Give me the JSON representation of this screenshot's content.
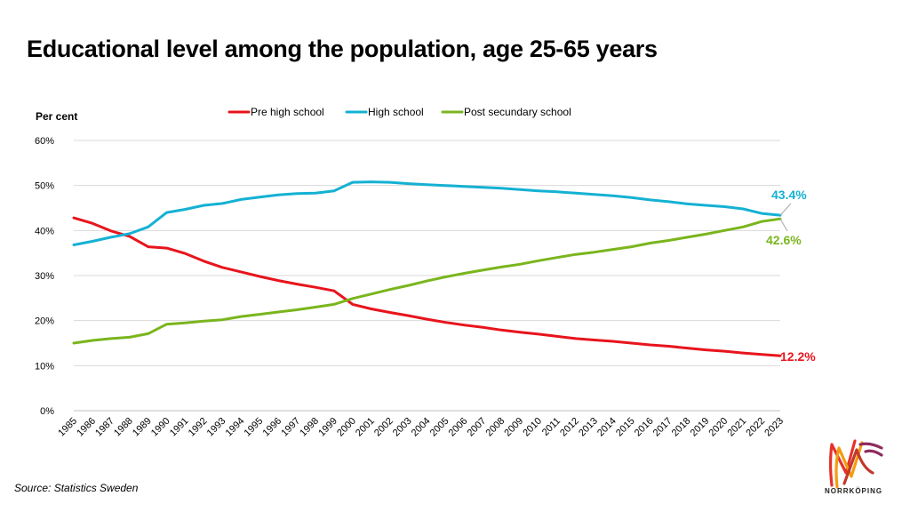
{
  "title": "Educational level among the population, age 25-65 years",
  "source": "Source: Statistics Sweden",
  "logo": {
    "text": "NORRKÖPING",
    "colors": [
      "#e4322b",
      "#f39c12",
      "#c0392b",
      "#8e2b5e"
    ]
  },
  "chart_data": {
    "type": "line",
    "ylabel": "Per cent",
    "ylim": [
      0,
      60
    ],
    "yticks": [
      0,
      10,
      20,
      30,
      40,
      50,
      60
    ],
    "ytick_labels": [
      "0%",
      "10%",
      "20%",
      "30%",
      "40%",
      "50%",
      "60%"
    ],
    "grid": true,
    "legend_position": "top",
    "categories": [
      "1985",
      "1986",
      "1987",
      "1988",
      "1989",
      "1990",
      "1991",
      "1992",
      "1993",
      "1994",
      "1995",
      "1996",
      "1997",
      "1998",
      "1999",
      "2000",
      "2001",
      "2002",
      "2003",
      "2004",
      "2005",
      "2006",
      "2007",
      "2008",
      "2009",
      "2010",
      "2011",
      "2012",
      "2013",
      "2014",
      "2015",
      "2016",
      "2017",
      "2018",
      "2019",
      "2020",
      "2021",
      "2022",
      "2023"
    ],
    "series": [
      {
        "name": "Pre high school",
        "color": "#e8141c",
        "end_label": "12.2%",
        "values": [
          42.8,
          41.6,
          39.9,
          38.7,
          36.4,
          36.1,
          34.9,
          33.2,
          31.8,
          30.8,
          29.8,
          28.9,
          28.1,
          27.4,
          26.6,
          23.6,
          22.6,
          21.8,
          21.1,
          20.3,
          19.6,
          19.0,
          18.5,
          17.9,
          17.4,
          17.0,
          16.5,
          16.0,
          15.7,
          15.4,
          15.0,
          14.6,
          14.3,
          13.9,
          13.5,
          13.2,
          12.8,
          12.5,
          12.2
        ]
      },
      {
        "name": "High school",
        "color": "#14b1d3",
        "end_label": "43.4%",
        "values": [
          36.8,
          37.6,
          38.5,
          39.3,
          40.8,
          44.0,
          44.7,
          45.6,
          46.0,
          46.9,
          47.4,
          47.9,
          48.2,
          48.3,
          48.8,
          50.7,
          50.8,
          50.7,
          50.4,
          50.2,
          50.0,
          49.8,
          49.6,
          49.4,
          49.1,
          48.8,
          48.6,
          48.3,
          48.0,
          47.7,
          47.3,
          46.8,
          46.4,
          45.9,
          45.6,
          45.3,
          44.8,
          43.8,
          43.4
        ]
      },
      {
        "name": "Post secundary school",
        "color": "#7ab51d",
        "end_label": "42.6%",
        "values": [
          15.0,
          15.6,
          16.0,
          16.3,
          17.1,
          19.2,
          19.5,
          19.9,
          20.2,
          20.9,
          21.4,
          21.9,
          22.4,
          23.0,
          23.6,
          24.9,
          25.9,
          26.9,
          27.8,
          28.8,
          29.7,
          30.5,
          31.2,
          31.9,
          32.5,
          33.3,
          34.0,
          34.7,
          35.2,
          35.8,
          36.4,
          37.2,
          37.8,
          38.5,
          39.2,
          40.0,
          40.8,
          42.0,
          42.6
        ]
      }
    ]
  }
}
